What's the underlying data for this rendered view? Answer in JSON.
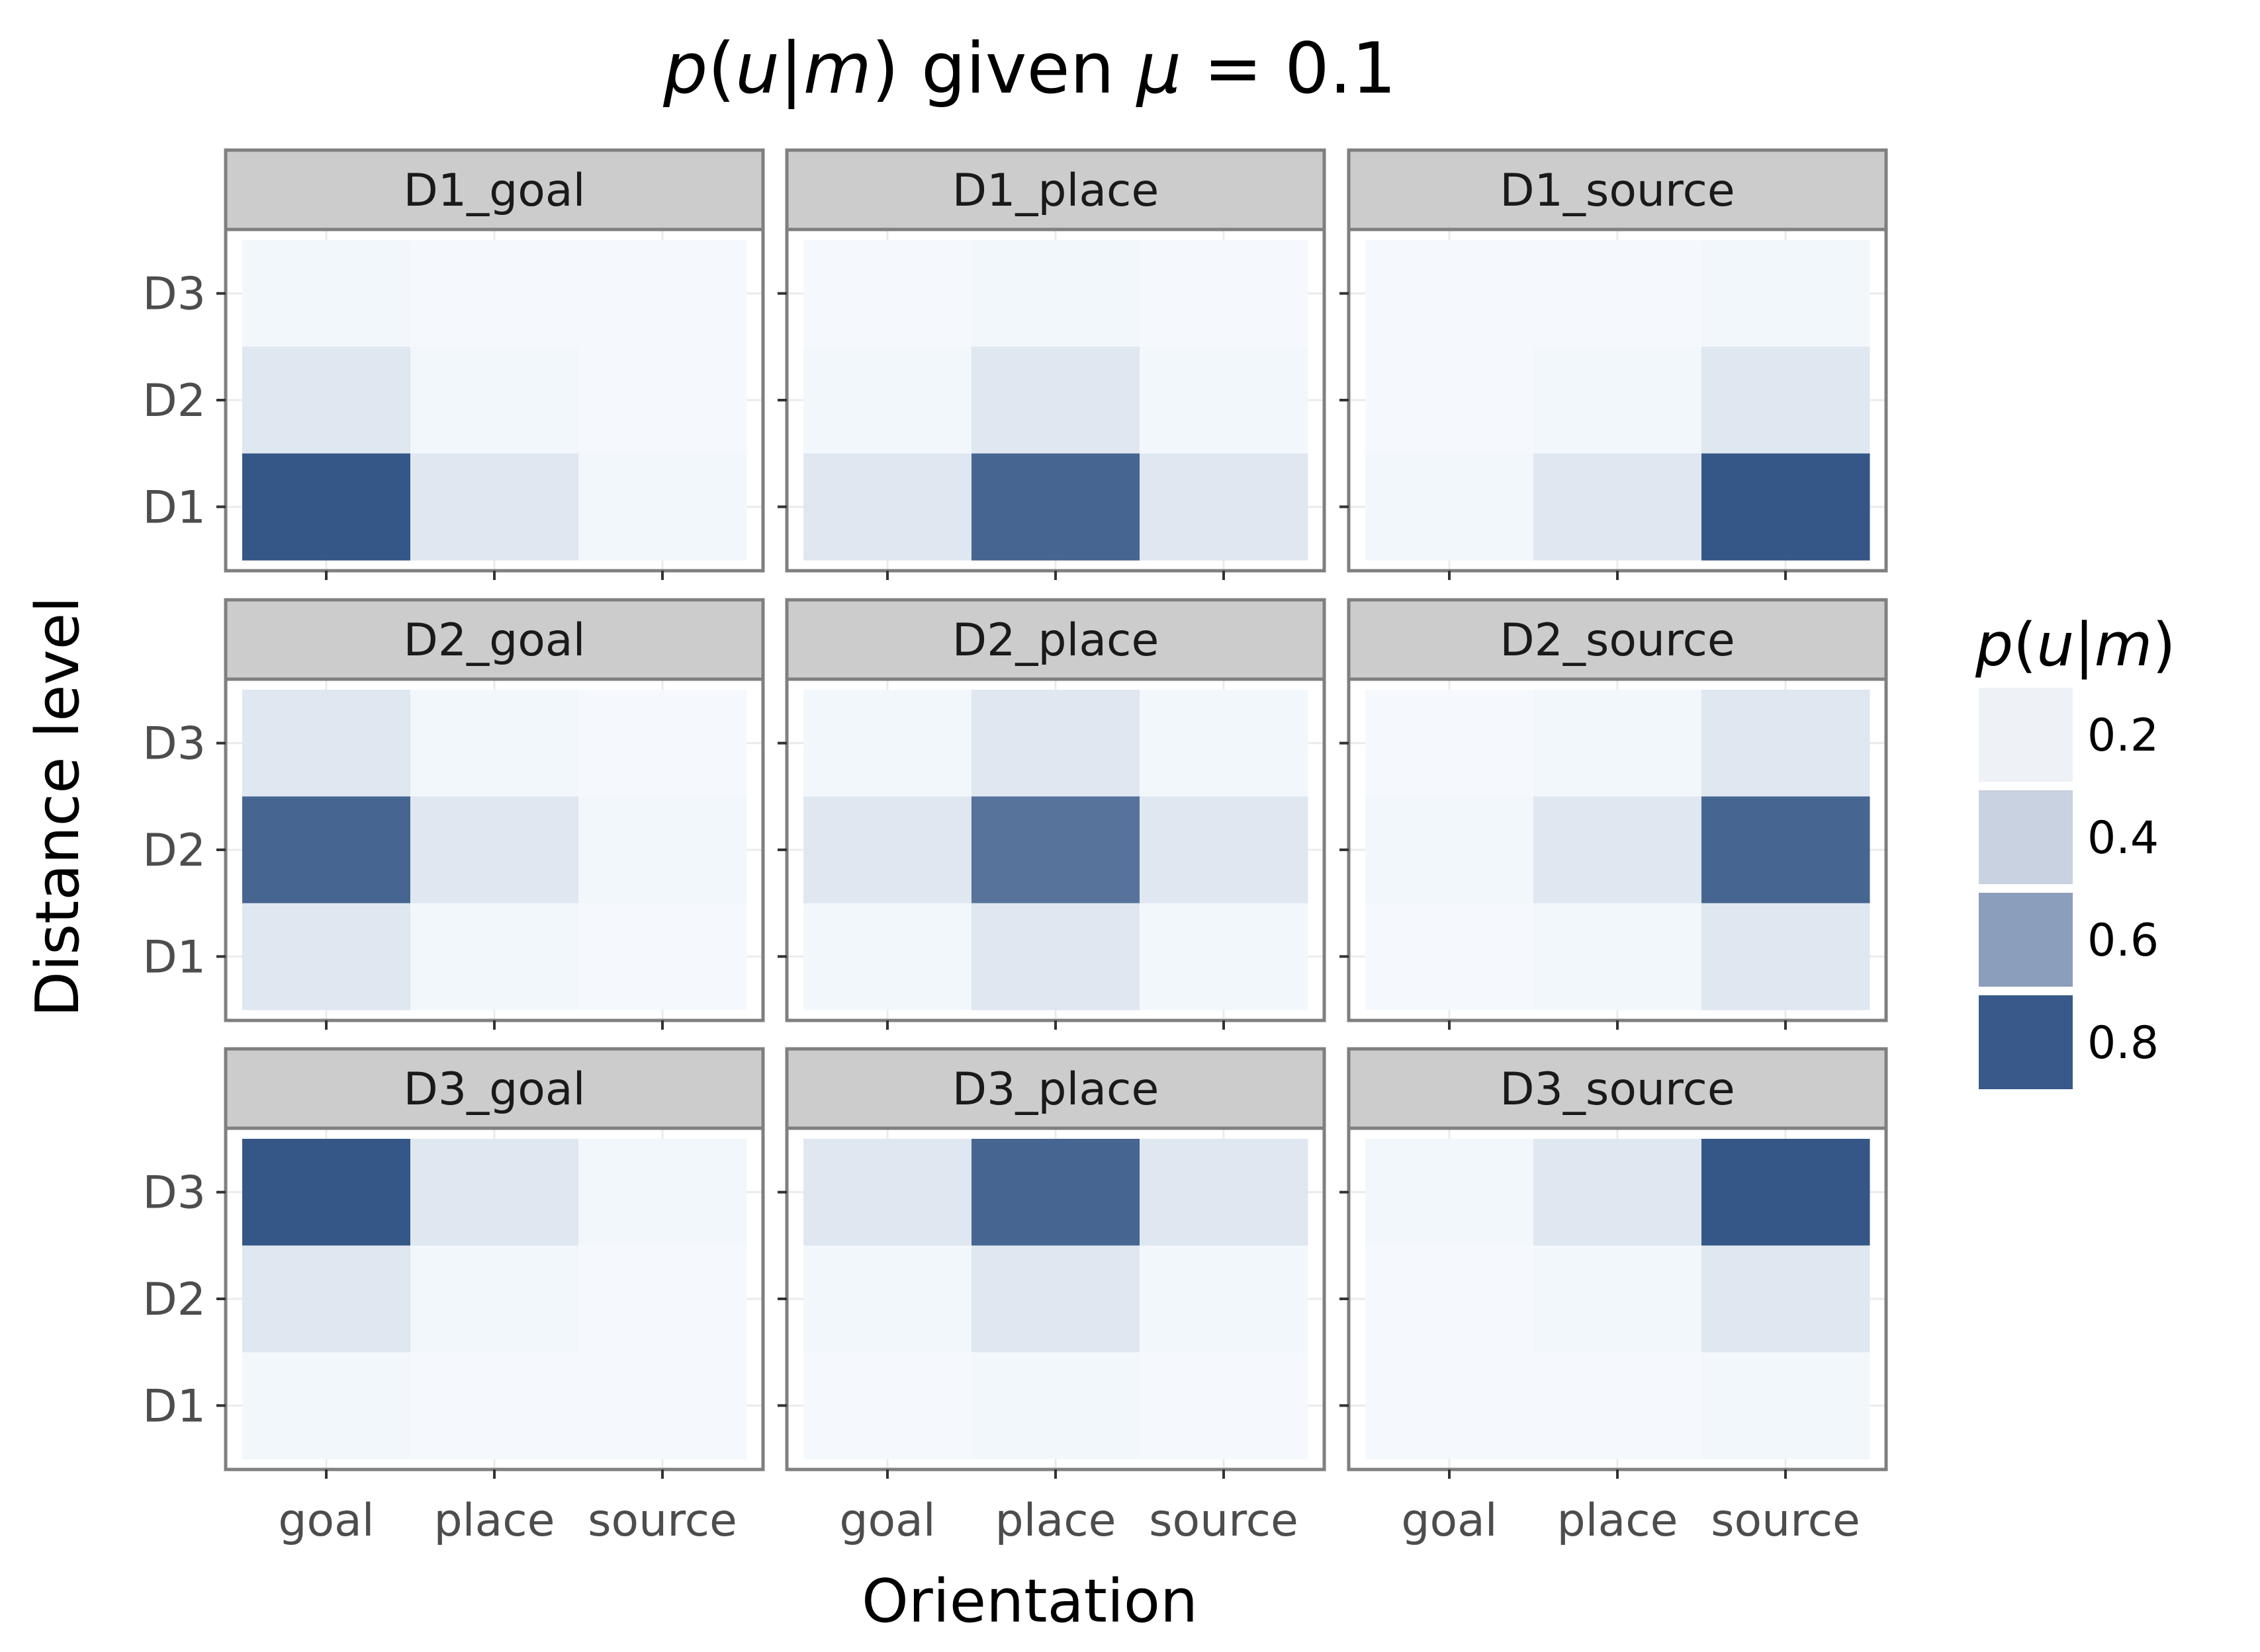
{
  "chart_data": {
    "type": "heatmap",
    "title_parts": [
      "p",
      "(",
      "u",
      "|",
      "m",
      ") given ",
      "μ",
      " = 0.1"
    ],
    "xlabel": "Orientation",
    "ylabel": "Distance level",
    "x_categories": [
      "goal",
      "place",
      "source"
    ],
    "y_categories": [
      "D3",
      "D2",
      "D1"
    ],
    "legend": {
      "title_parts": [
        "p",
        "(",
        "u",
        "|",
        "m",
        ")"
      ],
      "entries": [
        "0.2",
        "0.4",
        "0.6",
        "0.8"
      ],
      "entry_values": [
        0.2,
        0.4,
        0.6,
        0.8
      ]
    },
    "facets": [
      {
        "label": "D1_goal",
        "values": [
          [
            0.02,
            0.01,
            0.01
          ],
          [
            0.1,
            0.02,
            0.01
          ],
          [
            0.81,
            0.1,
            0.02
          ]
        ]
      },
      {
        "label": "D1_place",
        "values": [
          [
            0.01,
            0.02,
            0.01
          ],
          [
            0.02,
            0.1,
            0.02
          ],
          [
            0.1,
            0.74,
            0.1
          ]
        ]
      },
      {
        "label": "D1_source",
        "values": [
          [
            0.01,
            0.01,
            0.02
          ],
          [
            0.01,
            0.02,
            0.1
          ],
          [
            0.02,
            0.1,
            0.81
          ]
        ]
      },
      {
        "label": "D2_goal",
        "values": [
          [
            0.1,
            0.02,
            0.01
          ],
          [
            0.74,
            0.1,
            0.02
          ],
          [
            0.1,
            0.02,
            0.01
          ]
        ]
      },
      {
        "label": "D2_place",
        "values": [
          [
            0.02,
            0.1,
            0.02
          ],
          [
            0.1,
            0.67,
            0.1
          ],
          [
            0.02,
            0.1,
            0.02
          ]
        ]
      },
      {
        "label": "D2_source",
        "values": [
          [
            0.01,
            0.02,
            0.1
          ],
          [
            0.02,
            0.1,
            0.74
          ],
          [
            0.01,
            0.02,
            0.1
          ]
        ]
      },
      {
        "label": "D3_goal",
        "values": [
          [
            0.81,
            0.1,
            0.02
          ],
          [
            0.1,
            0.02,
            0.01
          ],
          [
            0.02,
            0.01,
            0.01
          ]
        ]
      },
      {
        "label": "D3_place",
        "values": [
          [
            0.1,
            0.74,
            0.1
          ],
          [
            0.02,
            0.1,
            0.02
          ],
          [
            0.01,
            0.02,
            0.01
          ]
        ]
      },
      {
        "label": "D3_source",
        "values": [
          [
            0.02,
            0.1,
            0.81
          ],
          [
            0.01,
            0.02,
            0.1
          ],
          [
            0.01,
            0.01,
            0.02
          ]
        ]
      }
    ],
    "color_scale": {
      "low": "#f7fbff",
      "high": "#08306b"
    },
    "strip_color": "#cccccc",
    "panel_border_color": "#7f7f7f",
    "grid": true
  }
}
